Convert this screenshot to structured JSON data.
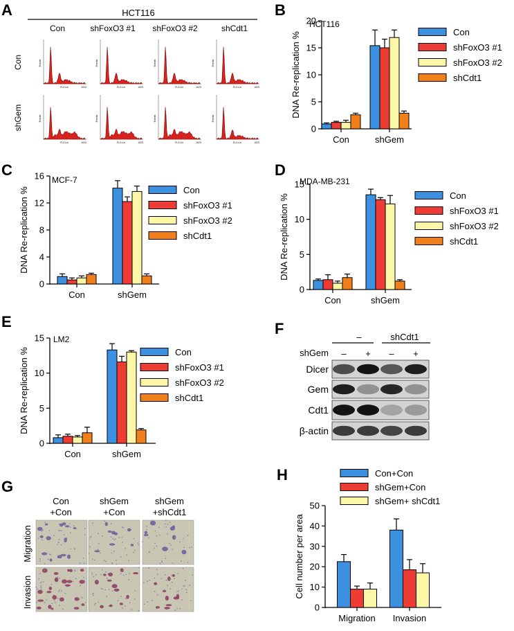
{
  "panels": {
    "A": {
      "letter": "A",
      "cell_line": "HCT116",
      "columns": [
        "Con",
        "shFoxO3 #1",
        "shFoxO3 #2",
        "shCdt1"
      ],
      "rows": [
        "Con",
        "shGem"
      ],
      "axis_x_text": "FL2-Lin",
      "axis_y_text": "Events",
      "axis_end_text": "1023"
    },
    "F": {
      "letter": "F",
      "header_neg": "–",
      "header_shcdt1": "shCdt1",
      "row_label": "shGem",
      "lane_signs": [
        "–",
        "+",
        "–",
        "+"
      ],
      "blots": [
        "Dicer",
        "Gem",
        "Cdt1",
        "β-actin"
      ]
    },
    "G": {
      "letter": "G",
      "columns": [
        {
          "line1": "Con",
          "line2": "+Con"
        },
        {
          "line1": "shGem",
          "line2": "+Con"
        },
        {
          "line1": "shGem",
          "line2": "+shCdt1"
        }
      ],
      "rows": [
        "Migration",
        "Invasion"
      ]
    }
  },
  "chart_data": [
    {
      "id": "B",
      "letter": "B",
      "type": "bar",
      "title": "HCT116",
      "ylabel": "DNA  Re-replication %",
      "ylim": [
        0,
        20
      ],
      "yticks": [
        0,
        5,
        10,
        15,
        20
      ],
      "categories": [
        "Con",
        "shGem"
      ],
      "series": [
        {
          "name": "Con",
          "color": "#3d8fe0",
          "values": [
            0.9,
            15.4
          ],
          "errors": [
            0.2,
            2.9
          ]
        },
        {
          "name": "shFoxO3 #1",
          "color": "#ee3b33",
          "values": [
            1.2,
            15.0
          ],
          "errors": [
            0.2,
            1.6
          ]
        },
        {
          "name": "shFoxO3 #2",
          "color": "#fbf7a6",
          "values": [
            1.2,
            16.9
          ],
          "errors": [
            0.4,
            1.4
          ]
        },
        {
          "name": "shCdt1",
          "color": "#f07f1c",
          "values": [
            2.6,
            2.9
          ],
          "errors": [
            0.3,
            0.4
          ]
        }
      ]
    },
    {
      "id": "C",
      "letter": "C",
      "type": "bar",
      "title": "MCF-7",
      "ylabel": "DNA  Re-replication %",
      "ylim": [
        0,
        16
      ],
      "yticks": [
        0,
        4,
        8,
        12,
        16
      ],
      "categories": [
        "Con",
        "shGem"
      ],
      "series": [
        {
          "name": "Con",
          "color": "#3d8fe0",
          "values": [
            1.1,
            14.2
          ],
          "errors": [
            0.4,
            1.1
          ]
        },
        {
          "name": "shFoxO3 #1",
          "color": "#ee3b33",
          "values": [
            0.6,
            12.2
          ],
          "errors": [
            0.3,
            0.7
          ]
        },
        {
          "name": "shFoxO3 #2",
          "color": "#fbf7a6",
          "values": [
            0.9,
            13.7
          ],
          "errors": [
            0.3,
            0.8
          ]
        },
        {
          "name": "shCdt1",
          "color": "#f07f1c",
          "values": [
            1.4,
            1.2
          ],
          "errors": [
            0.2,
            0.3
          ]
        }
      ]
    },
    {
      "id": "D",
      "letter": "D",
      "type": "bar",
      "title": "MDA-MB-231",
      "ylabel": "DNA  Re-replication %",
      "ylim": [
        0,
        15
      ],
      "yticks": [
        0,
        5,
        10,
        15
      ],
      "categories": [
        "Con",
        "shGem"
      ],
      "series": [
        {
          "name": "Con",
          "color": "#3d8fe0",
          "values": [
            1.3,
            13.5
          ],
          "errors": [
            0.2,
            0.8
          ]
        },
        {
          "name": "shFoxO3 #1",
          "color": "#ee3b33",
          "values": [
            1.4,
            12.8
          ],
          "errors": [
            0.7,
            0.3
          ]
        },
        {
          "name": "shFoxO3 #2",
          "color": "#fbf7a6",
          "values": [
            0.9,
            12.2
          ],
          "errors": [
            0.3,
            1.2
          ]
        },
        {
          "name": "shCdt1",
          "color": "#f07f1c",
          "values": [
            1.7,
            1.2
          ],
          "errors": [
            0.5,
            0.2
          ]
        }
      ]
    },
    {
      "id": "E",
      "letter": "E",
      "type": "bar",
      "title": "LM2",
      "ylabel": "DNA  Re-replication %",
      "ylim": [
        0,
        15
      ],
      "yticks": [
        0,
        5,
        10,
        15
      ],
      "categories": [
        "Con",
        "shGem"
      ],
      "series": [
        {
          "name": "Con",
          "color": "#3d8fe0",
          "values": [
            0.8,
            13.3
          ],
          "errors": [
            0.4,
            0.9
          ]
        },
        {
          "name": "shFoxO3 #1",
          "color": "#ee3b33",
          "values": [
            1.0,
            11.6
          ],
          "errors": [
            0.3,
            0.8
          ]
        },
        {
          "name": "shFoxO3 #2",
          "color": "#fbf7a6",
          "values": [
            0.9,
            13.0
          ],
          "errors": [
            0.2,
            0.2
          ]
        },
        {
          "name": "shCdt1",
          "color": "#f07f1c",
          "values": [
            1.5,
            1.9
          ],
          "errors": [
            0.8,
            0.2
          ]
        }
      ]
    },
    {
      "id": "H",
      "letter": "H",
      "type": "bar",
      "title": "",
      "ylabel": "Cell number per area",
      "ylim": [
        0,
        50
      ],
      "yticks": [
        0,
        10,
        20,
        30,
        40,
        50
      ],
      "categories": [
        "Migration",
        "Invasion"
      ],
      "series": [
        {
          "name": "Con+Con",
          "color": "#3d8fe0",
          "values": [
            22.5,
            38.0
          ],
          "errors": [
            3.5,
            5.5
          ]
        },
        {
          "name": "shGem+Con",
          "color": "#ee3b33",
          "values": [
            9.0,
            18.5
          ],
          "errors": [
            1.5,
            5.0
          ]
        },
        {
          "name": "shGem+ shCdt1",
          "color": "#fbf7a6",
          "values": [
            9.0,
            17.0
          ],
          "errors": [
            3.0,
            4.5
          ]
        }
      ]
    }
  ]
}
